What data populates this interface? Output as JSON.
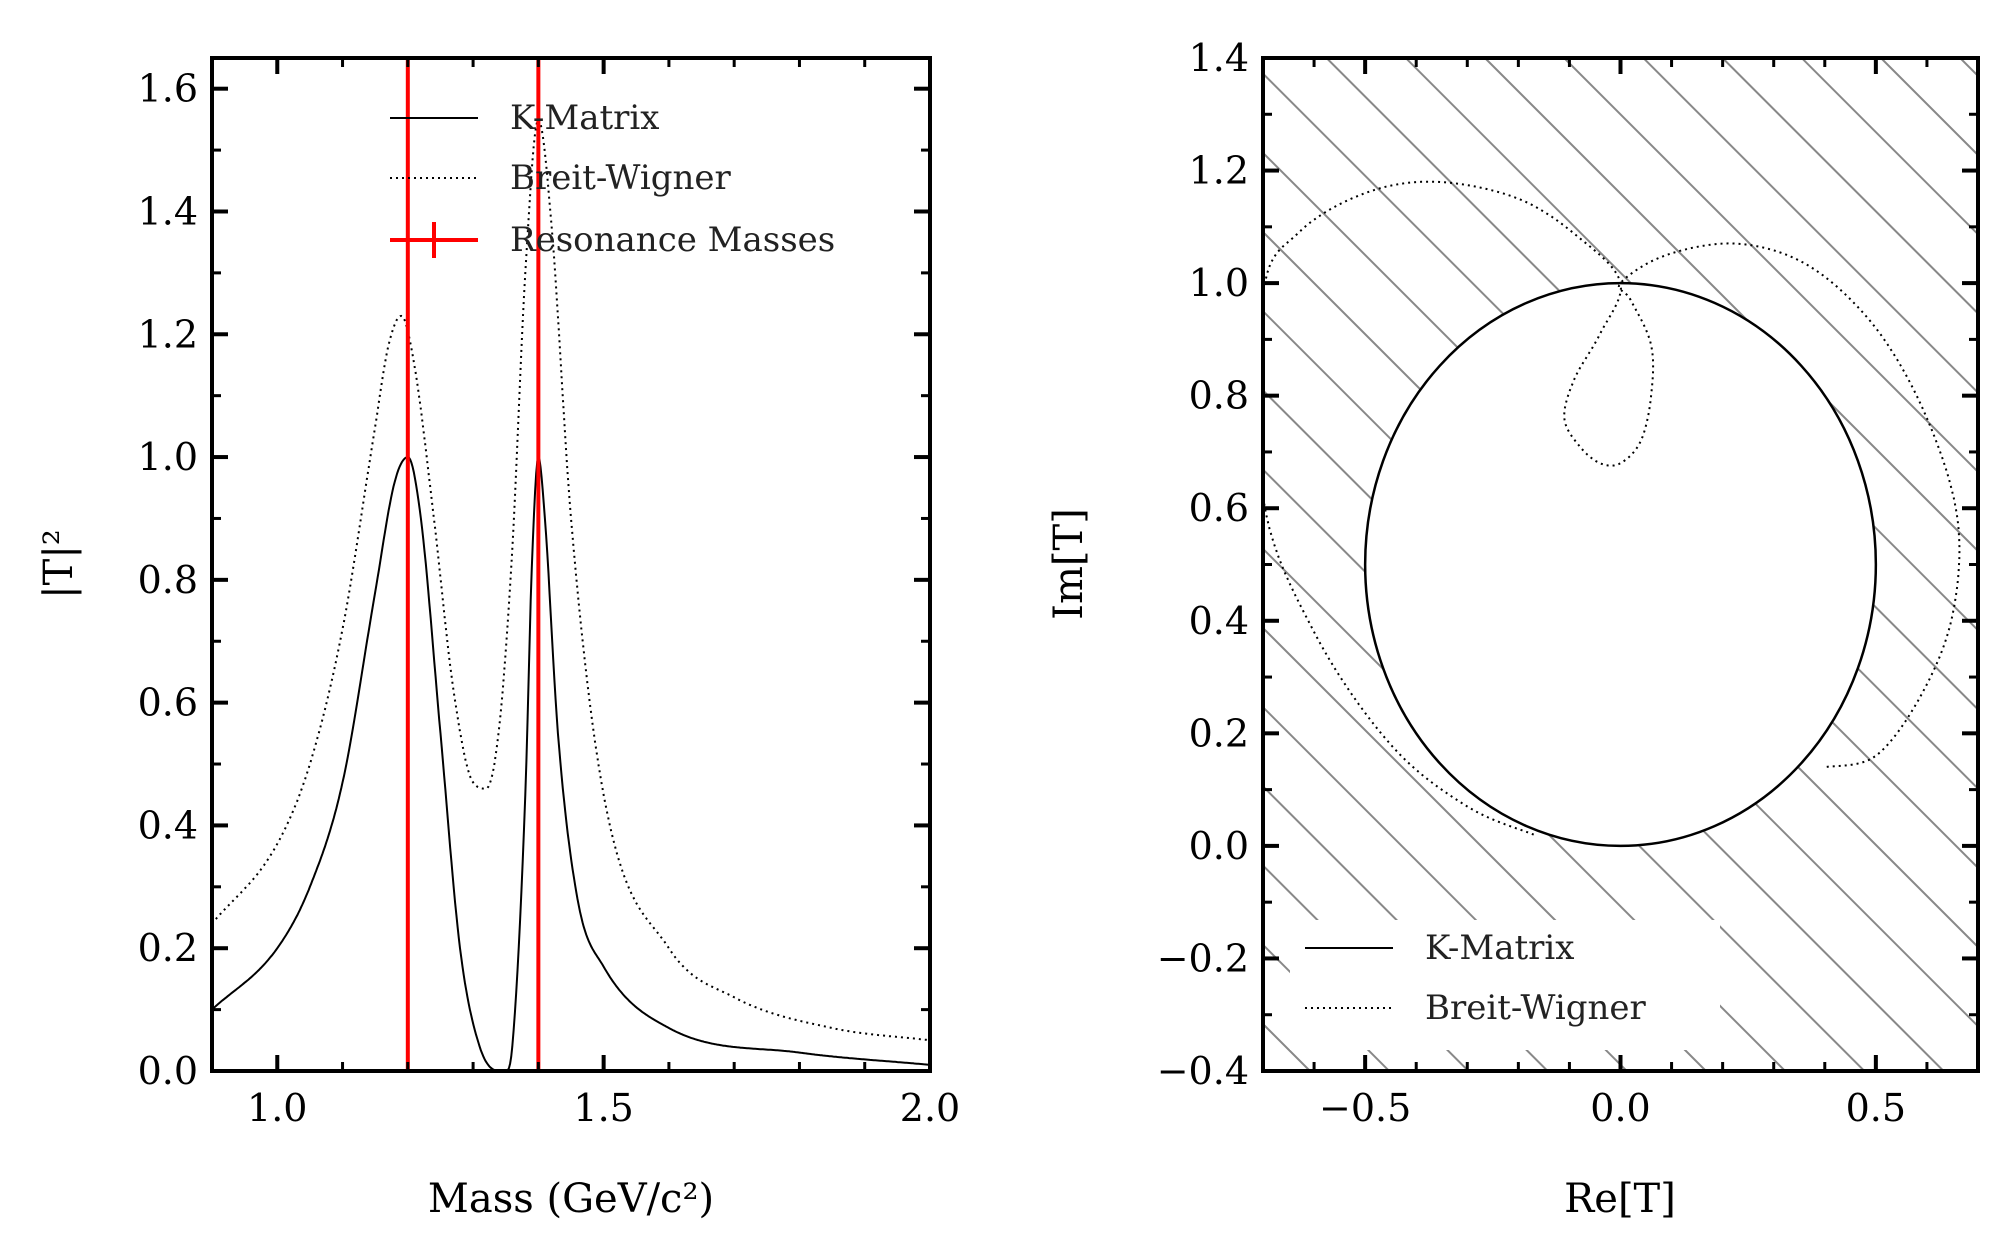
{
  "colors": {
    "resonance": "#ff0000",
    "curve": "#000000",
    "hatch": "#888888"
  },
  "chart_data": [
    {
      "type": "line",
      "xlabel": "Mass (GeV/c²)",
      "ylabel": "|T|²",
      "xlim": [
        0.9,
        2.0
      ],
      "ylim": [
        0.0,
        1.65
      ],
      "xticks": [
        1.0,
        1.5,
        2.0
      ],
      "xtick_labels": [
        "1.0",
        "1.5",
        "2.0"
      ],
      "yticks": [
        0.0,
        0.2,
        0.4,
        0.6,
        0.8,
        1.0,
        1.2,
        1.4,
        1.6
      ],
      "ytick_labels": [
        "0.0",
        "0.2",
        "0.4",
        "0.6",
        "0.8",
        "1.0",
        "1.2",
        "1.4",
        "1.6"
      ],
      "legend": [
        "K-Matrix",
        "Breit-Wigner",
        "Resonance Masses"
      ],
      "legend_position": "top-right",
      "resonance_masses": [
        1.2,
        1.4
      ],
      "series": [
        {
          "name": "K-Matrix",
          "style": "solid",
          "x": [
            0.9,
            1.0,
            1.05,
            1.1,
            1.15,
            1.18,
            1.2,
            1.22,
            1.25,
            1.28,
            1.31,
            1.34,
            1.35,
            1.36,
            1.38,
            1.39,
            1.4,
            1.41,
            1.43,
            1.46,
            1.5,
            1.6,
            1.8,
            2.0
          ],
          "y": [
            0.1,
            0.2,
            0.3,
            0.47,
            0.78,
            0.96,
            1.0,
            0.9,
            0.55,
            0.2,
            0.04,
            0.0,
            0.0,
            0.04,
            0.45,
            0.82,
            1.0,
            0.9,
            0.55,
            0.28,
            0.17,
            0.07,
            0.03,
            0.01
          ]
        },
        {
          "name": "Breit-Wigner",
          "style": "dotted",
          "x": [
            0.9,
            1.0,
            1.05,
            1.1,
            1.15,
            1.17,
            1.19,
            1.21,
            1.24,
            1.27,
            1.3,
            1.32,
            1.34,
            1.36,
            1.38,
            1.4,
            1.42,
            1.45,
            1.5,
            1.6,
            1.7,
            1.85,
            2.0
          ],
          "y": [
            0.24,
            0.37,
            0.5,
            0.72,
            1.05,
            1.18,
            1.23,
            1.15,
            0.9,
            0.62,
            0.47,
            0.46,
            0.56,
            0.85,
            1.3,
            1.55,
            1.38,
            0.9,
            0.45,
            0.2,
            0.12,
            0.07,
            0.05
          ]
        }
      ]
    },
    {
      "type": "line",
      "subtype": "argand",
      "xlabel": "Re[T]",
      "ylabel": "Im[T]",
      "xlim": [
        -0.7,
        0.7
      ],
      "ylim": [
        -0.4,
        1.4
      ],
      "xticks": [
        -0.5,
        0.0,
        0.5
      ],
      "xtick_labels": [
        "−0.5",
        "0.0",
        "0.5"
      ],
      "yticks": [
        -0.4,
        -0.2,
        0.0,
        0.2,
        0.4,
        0.6,
        0.8,
        1.0,
        1.2,
        1.4
      ],
      "ytick_labels": [
        "−0.4",
        "−0.2",
        "0.0",
        "0.2",
        "0.4",
        "0.6",
        "0.8",
        "1.0",
        "1.2",
        "1.4"
      ],
      "hatched_background": true,
      "legend": [
        "K-Matrix",
        "Breit-Wigner"
      ],
      "legend_position": "lower-left",
      "series": [
        {
          "name": "K-Matrix",
          "style": "solid",
          "shape": "unitarity-circle",
          "center": [
            0.0,
            0.5
          ],
          "radius": 0.5
        },
        {
          "name": "Breit-Wigner",
          "style": "dotted",
          "x": [
            -0.17,
            -0.3,
            -0.45,
            -0.6,
            -0.7,
            -0.7,
            -0.63,
            -0.5,
            -0.36,
            -0.2,
            -0.08,
            0.0,
            -0.04,
            -0.09,
            -0.11,
            -0.08,
            -0.04,
            0.0,
            0.04,
            0.06,
            0.06,
            0.02,
            0.0,
            0.09,
            0.23,
            0.37,
            0.5,
            0.6,
            0.66,
            0.65,
            0.59,
            0.5,
            0.4
          ],
          "y": [
            0.02,
            0.07,
            0.18,
            0.38,
            0.62,
            0.98,
            1.09,
            1.16,
            1.18,
            1.15,
            1.08,
            1.0,
            0.91,
            0.83,
            0.76,
            0.71,
            0.68,
            0.68,
            0.72,
            0.8,
            0.89,
            0.97,
            1.0,
            1.05,
            1.07,
            1.03,
            0.92,
            0.76,
            0.58,
            0.41,
            0.27,
            0.16,
            0.14
          ]
        }
      ]
    }
  ]
}
